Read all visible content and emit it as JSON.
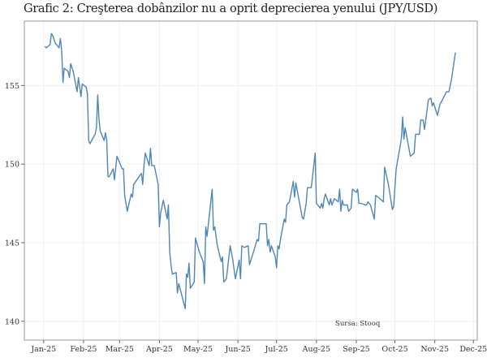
{
  "chart_data": {
    "type": "line",
    "title": "Grafic 2: Creşterea dobânzilor nu a oprit deprecierea yenului (JPY/USD)",
    "xlabel": "",
    "ylabel": "",
    "source_note": "Sursa: Stooq",
    "xlim": [
      "2024-12-17",
      "2025-12-04"
    ],
    "ylim": [
      138.8,
      159.1
    ],
    "grid": true,
    "line_color": "#4f86b5",
    "x_ticks": [
      {
        "date": "2025-01-01",
        "label": "Jan-25"
      },
      {
        "date": "2025-02-01",
        "label": "Feb-25"
      },
      {
        "date": "2025-03-01",
        "label": "Mar-25"
      },
      {
        "date": "2025-04-01",
        "label": "Apr-25"
      },
      {
        "date": "2025-05-01",
        "label": "May-25"
      },
      {
        "date": "2025-06-01",
        "label": "Jun-25"
      },
      {
        "date": "2025-07-01",
        "label": "Jul-25"
      },
      {
        "date": "2025-08-01",
        "label": "Aug-25"
      },
      {
        "date": "2025-09-01",
        "label": "Sep-25"
      },
      {
        "date": "2025-10-01",
        "label": "Oct-25"
      },
      {
        "date": "2025-11-01",
        "label": "Nov-25"
      },
      {
        "date": "2025-12-01",
        "label": "Dec-25"
      }
    ],
    "y_ticks": [
      {
        "value": 140,
        "label": "140"
      },
      {
        "value": 145,
        "label": "145"
      },
      {
        "value": 150,
        "label": "150"
      },
      {
        "value": 155,
        "label": "155"
      }
    ],
    "series": [
      {
        "x": [
          "2025-01-02",
          "2025-01-03",
          "2025-01-06",
          "2025-01-07",
          "2025-01-08",
          "2025-01-10",
          "2025-01-13",
          "2025-01-14",
          "2025-01-15",
          "2025-01-16",
          "2025-01-17",
          "2025-01-20",
          "2025-01-21",
          "2025-01-22",
          "2025-01-24",
          "2025-01-27",
          "2025-01-28",
          "2025-01-30",
          "2025-01-31",
          "2025-02-03",
          "2025-02-04",
          "2025-02-05",
          "2025-02-06",
          "2025-02-10",
          "2025-02-11",
          "2025-02-12",
          "2025-02-13",
          "2025-02-14",
          "2025-02-17",
          "2025-02-18",
          "2025-02-19",
          "2025-02-20",
          "2025-02-21",
          "2025-02-24",
          "2025-02-25",
          "2025-02-27",
          "2025-03-03",
          "2025-03-04",
          "2025-03-05",
          "2025-03-07",
          "2025-03-10",
          "2025-03-11",
          "2025-03-12",
          "2025-03-17",
          "2025-03-18",
          "2025-03-19",
          "2025-03-20",
          "2025-03-21",
          "2025-03-24",
          "2025-03-25",
          "2025-03-26",
          "2025-03-28",
          "2025-03-31",
          "2025-04-01",
          "2025-04-02",
          "2025-04-04",
          "2025-04-07",
          "2025-04-08",
          "2025-04-09",
          "2025-04-10",
          "2025-04-11",
          "2025-04-14",
          "2025-04-15",
          "2025-04-16",
          "2025-04-21",
          "2025-04-22",
          "2025-04-23",
          "2025-04-24",
          "2025-04-25",
          "2025-04-28",
          "2025-04-29",
          "2025-05-02",
          "2025-05-05",
          "2025-05-06",
          "2025-05-07",
          "2025-05-08",
          "2025-05-12",
          "2025-05-13",
          "2025-05-14",
          "2025-05-16",
          "2025-05-19",
          "2025-05-20",
          "2025-05-21",
          "2025-05-23",
          "2025-05-26",
          "2025-05-28",
          "2025-05-30",
          "2025-06-02",
          "2025-06-03",
          "2025-06-04",
          "2025-06-06",
          "2025-06-09",
          "2025-06-10",
          "2025-06-13",
          "2025-06-16",
          "2025-06-17",
          "2025-06-18",
          "2025-06-23",
          "2025-06-24",
          "2025-06-25",
          "2025-06-26",
          "2025-06-27",
          "2025-06-30",
          "2025-07-01",
          "2025-07-02",
          "2025-07-03",
          "2025-07-04",
          "2025-07-07",
          "2025-07-08",
          "2025-07-09",
          "2025-07-11",
          "2025-07-14",
          "2025-07-15",
          "2025-07-16",
          "2025-07-18",
          "2025-07-21",
          "2025-07-22",
          "2025-07-24",
          "2025-07-25",
          "2025-07-28",
          "2025-07-31",
          "2025-08-01",
          "2025-08-04",
          "2025-08-05",
          "2025-08-06",
          "2025-08-07",
          "2025-08-08",
          "2025-08-11",
          "2025-08-12",
          "2025-08-13",
          "2025-08-14",
          "2025-08-15",
          "2025-08-18",
          "2025-08-19",
          "2025-08-20",
          "2025-08-21",
          "2025-08-22",
          "2025-08-25",
          "2025-08-26",
          "2025-08-28",
          "2025-08-29",
          "2025-09-01",
          "2025-09-02",
          "2025-09-03",
          "2025-09-05",
          "2025-09-08",
          "2025-09-09",
          "2025-09-10",
          "2025-09-12",
          "2025-09-15",
          "2025-09-16",
          "2025-09-18",
          "2025-09-22",
          "2025-09-23",
          "2025-09-26",
          "2025-09-29",
          "2025-09-30",
          "2025-10-02",
          "2025-10-06",
          "2025-10-07",
          "2025-10-08",
          "2025-10-09",
          "2025-10-13",
          "2025-10-16",
          "2025-10-17",
          "2025-10-20",
          "2025-10-21",
          "2025-10-23",
          "2025-10-24",
          "2025-10-27",
          "2025-10-29",
          "2025-10-30",
          "2025-10-31",
          "2025-11-03",
          "2025-11-05",
          "2025-11-07",
          "2025-11-10",
          "2025-11-12",
          "2025-11-14",
          "2025-11-17"
        ],
        "values": [
          157.5,
          157.4,
          157.6,
          158.3,
          158.2,
          157.7,
          157.4,
          158.0,
          157.2,
          155.2,
          156.1,
          155.9,
          155.5,
          156.4,
          155.9,
          154.6,
          155.5,
          154.3,
          155.1,
          154.9,
          154.5,
          151.5,
          151.3,
          151.9,
          152.3,
          154.4,
          152.9,
          152.1,
          151.5,
          152.0,
          151.5,
          149.2,
          149.2,
          149.7,
          149.0,
          150.5,
          149.7,
          149.7,
          148.0,
          147.0,
          148.1,
          147.9,
          148.7,
          149.3,
          149.4,
          148.7,
          149.9,
          150.7,
          149.9,
          151.0,
          149.9,
          149.9,
          148.7,
          146.0,
          146.9,
          147.7,
          146.5,
          147.4,
          144.4,
          143.6,
          143.0,
          143.1,
          141.8,
          142.4,
          140.8,
          143.0,
          142.8,
          143.7,
          142.1,
          142.5,
          145.3,
          144.4,
          143.8,
          142.4,
          146.0,
          145.4,
          148.4,
          145.8,
          146.0,
          144.8,
          143.8,
          144.1,
          142.5,
          142.7,
          144.8,
          143.9,
          142.7,
          143.9,
          142.7,
          144.8,
          144.7,
          144.8,
          143.6,
          144.4,
          145.2,
          145.1,
          146.2,
          146.2,
          144.8,
          145.2,
          144.4,
          144.8,
          144.1,
          143.4,
          144.8,
          144.6,
          145.2,
          146.5,
          146.3,
          147.4,
          147.6,
          148.9,
          147.9,
          148.8,
          147.9,
          146.6,
          146.5,
          147.5,
          148.5,
          148.5,
          150.7,
          147.5,
          147.2,
          147.5,
          147.2,
          147.8,
          148.1,
          147.4,
          147.8,
          147.4,
          147.6,
          147.8,
          147.6,
          148.4,
          147.0,
          147.7,
          147.4,
          147.4,
          147.0,
          147.2,
          148.4,
          148.2,
          148.4,
          147.5,
          147.5,
          147.4,
          147.4,
          147.6,
          147.4,
          146.5,
          148.0,
          147.9,
          147.6,
          149.8,
          148.7,
          147.1,
          147.3,
          149.7,
          151.6,
          153.0,
          151.6,
          152.3,
          150.5,
          150.7,
          151.9,
          151.9,
          152.8,
          152.8,
          152.2,
          154.1,
          154.2,
          153.7,
          153.9,
          153.1,
          153.8,
          154.1,
          154.6,
          154.6,
          155.4,
          157.1
        ]
      }
    ]
  }
}
